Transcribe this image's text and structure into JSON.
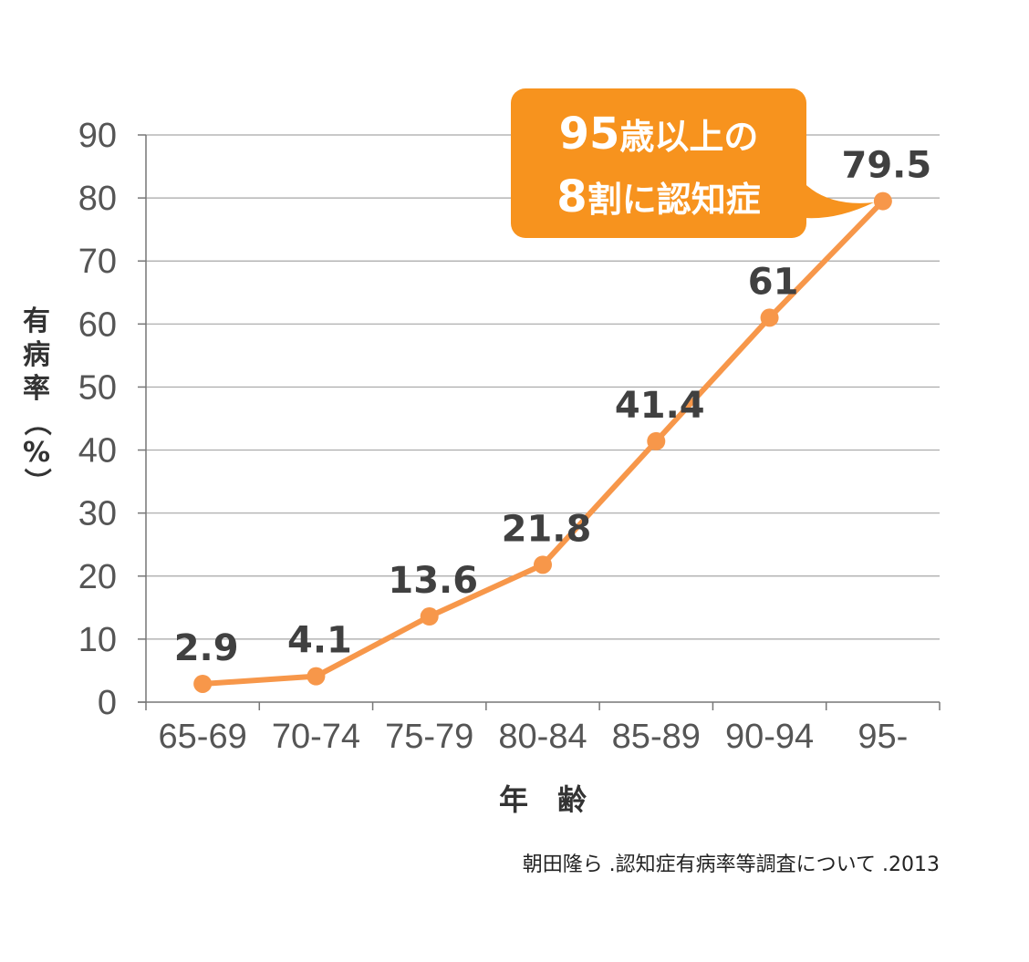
{
  "chart_data": {
    "type": "line",
    "categories": [
      "65-69",
      "70-74",
      "75-79",
      "80-84",
      "85-89",
      "90-94",
      "95-"
    ],
    "series": [
      {
        "values": [
          2.9,
          4.1,
          13.6,
          21.8,
          41.4,
          61,
          79.5
        ]
      }
    ],
    "data_labels": [
      "2.9",
      "4.1",
      "13.6",
      "21.8",
      "41.4",
      "61",
      "79.5"
    ],
    "xlabel": "年　齢",
    "ylabel_chars": [
      "有",
      "病",
      "率",
      "（",
      "%",
      "）"
    ],
    "ylim": [
      0,
      90
    ],
    "yticks": [
      0,
      10,
      20,
      30,
      40,
      50,
      60,
      70,
      80,
      90
    ],
    "grid": true,
    "colors": {
      "line": "#f7974a",
      "callout": "#f7931e",
      "grid": "#a6a6a6"
    }
  },
  "callout": {
    "line1_number": "95",
    "line1_text": "歳以上の",
    "line2_number": "8",
    "line2_text": "割に認知症"
  },
  "source": "朝田隆ら .認知症有病率等調査について .2013"
}
